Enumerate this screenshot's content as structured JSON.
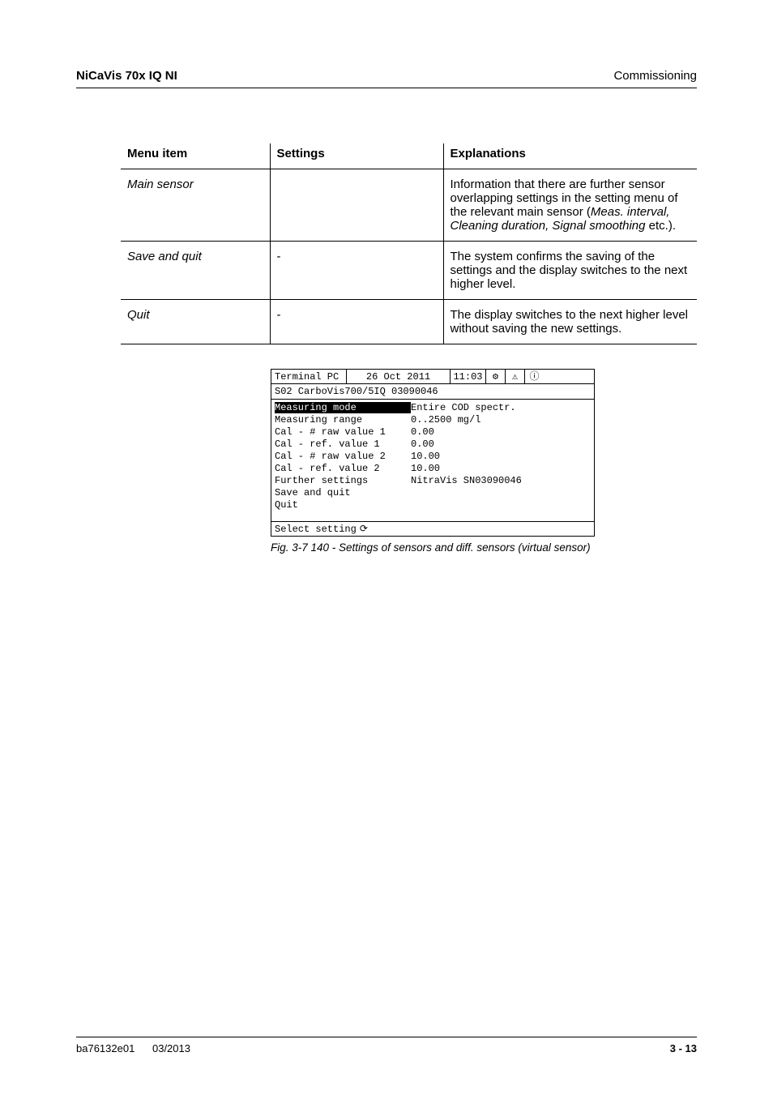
{
  "header": {
    "left": "NiCaVis 70x IQ NI",
    "right": "Commissioning"
  },
  "table": {
    "headers": [
      "Menu item",
      "Settings",
      "Explanations"
    ],
    "rows": [
      {
        "menu_item": "Main sensor",
        "settings": "",
        "explanation_pre": "Information that there are further sensor overlapping settings in the setting menu of the relevant main sensor (",
        "explanation_italic": "Meas. interval, Cleaning duration, Signal smoothing",
        "explanation_post": " etc.)."
      },
      {
        "menu_item": "Save and quit",
        "settings": "-",
        "explanation_pre": "The system confirms the saving of the settings and the display switches to the next higher level.",
        "explanation_italic": "",
        "explanation_post": ""
      },
      {
        "menu_item": "Quit",
        "settings": "-",
        "explanation_pre": "The display switches to the next higher level without saving the new settings.",
        "explanation_italic": "",
        "explanation_post": ""
      }
    ]
  },
  "terminal": {
    "top_name": "Terminal PC",
    "top_date": "26  Oct    2011",
    "top_time": "11:03",
    "icon1": "⚙",
    "icon2": "⚠",
    "icon3": "ⓘ",
    "sub": "S02 CarboVis700/5IQ 03090046",
    "rows": [
      {
        "label": "Measuring mode",
        "value": "Entire COD spectr.",
        "selected": true
      },
      {
        "label": "Measuring range",
        "value": "0..2500 mg/l",
        "selected": false
      },
      {
        "label": "Cal - # raw value 1",
        "value": "0.00",
        "selected": false
      },
      {
        "label": "Cal - ref. value 1",
        "value": "0.00",
        "selected": false
      },
      {
        "label": "Cal - # raw value 2",
        "value": "10.00",
        "selected": false
      },
      {
        "label": "Cal - ref. value 2",
        "value": "10.00",
        "selected": false
      },
      {
        "label": "Further settings",
        "value": "NitraVis SN03090046",
        "selected": false
      },
      {
        "label": "Save and quit",
        "value": "",
        "selected": false
      },
      {
        "label": "Quit",
        "value": "",
        "selected": false
      }
    ],
    "footer_text": "Select setting",
    "footer_icon": "⟳"
  },
  "caption": "Fig. 3-7    140 - Settings of sensors and diff. sensors (virtual sensor)",
  "footer": {
    "left1": "ba76132e01",
    "left2": "03/2013",
    "right": "3 - 13"
  }
}
